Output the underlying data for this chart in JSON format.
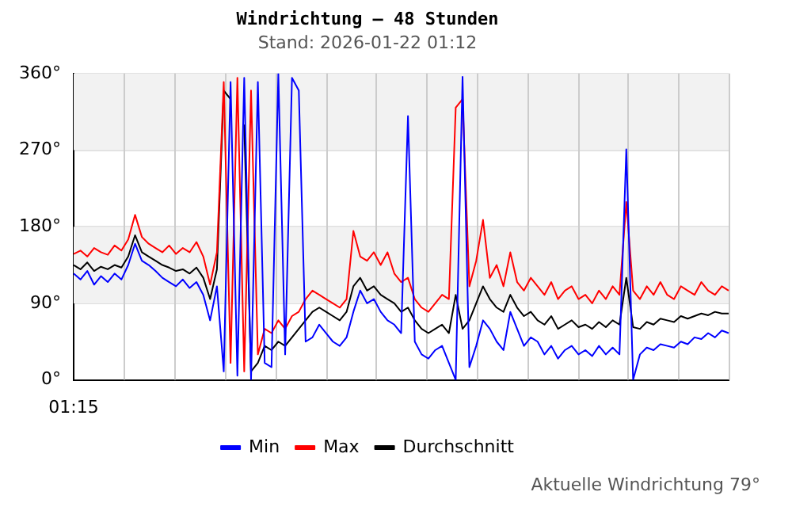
{
  "chart_data": {
    "type": "line",
    "title": "Windrichtung – 48 Stunden",
    "subtitle": "Stand: 2026-01-22 01:12",
    "categories": [
      "01:15",
      null,
      null,
      null,
      null,
      null,
      null,
      null,
      null,
      null,
      null,
      null,
      null,
      null,
      null,
      null,
      null,
      null,
      null,
      null,
      null,
      null,
      null,
      null,
      null,
      null,
      null,
      null,
      null,
      null,
      null,
      null,
      null,
      null,
      null,
      null,
      null,
      null,
      null,
      null,
      null,
      null,
      null,
      null,
      null,
      null,
      null,
      null,
      null,
      null,
      null,
      null,
      null,
      null,
      null,
      null,
      null,
      null,
      null,
      null,
      null,
      null,
      null,
      null,
      null,
      null,
      null,
      null,
      null,
      null,
      null,
      null,
      null,
      null,
      null,
      null,
      null,
      null,
      null,
      null,
      null,
      null,
      null,
      null,
      null,
      null,
      null,
      null,
      null,
      null,
      null,
      null,
      null,
      null,
      null,
      null,
      null
    ],
    "series": [
      {
        "name": "Min",
        "color": "#0000ff",
        "values": [
          125,
          118,
          128,
          112,
          122,
          115,
          125,
          118,
          135,
          160,
          140,
          135,
          128,
          120,
          115,
          110,
          118,
          108,
          115,
          100,
          70,
          110,
          10,
          350,
          5,
          355,
          0,
          350,
          20,
          15,
          360,
          30,
          355,
          340,
          45,
          50,
          65,
          55,
          45,
          40,
          50,
          80,
          105,
          90,
          95,
          80,
          70,
          65,
          55,
          310,
          45,
          30,
          25,
          35,
          40,
          20,
          0,
          356,
          15,
          40,
          70,
          60,
          45,
          35,
          80,
          60,
          40,
          50,
          45,
          30,
          40,
          25,
          35,
          40,
          30,
          35,
          28,
          40,
          30,
          38,
          30,
          271,
          0,
          30,
          38,
          35,
          42,
          40,
          38,
          45,
          42,
          50,
          48,
          55,
          50,
          58,
          55
        ]
      },
      {
        "name": "Max",
        "color": "#ff0000",
        "values": [
          148,
          152,
          145,
          155,
          150,
          147,
          158,
          152,
          165,
          194,
          168,
          160,
          155,
          150,
          158,
          148,
          155,
          150,
          162,
          145,
          112,
          150,
          350,
          20,
          355,
          10,
          340,
          30,
          60,
          55,
          70,
          60,
          75,
          80,
          95,
          105,
          100,
          95,
          90,
          85,
          95,
          175,
          145,
          140,
          150,
          135,
          150,
          125,
          115,
          120,
          95,
          85,
          80,
          90,
          100,
          95,
          320,
          330,
          110,
          140,
          188,
          120,
          135,
          110,
          150,
          115,
          105,
          120,
          110,
          100,
          115,
          95,
          105,
          110,
          95,
          100,
          90,
          105,
          95,
          110,
          100,
          209,
          105,
          95,
          110,
          100,
          115,
          100,
          95,
          110,
          105,
          100,
          115,
          105,
          100,
          110,
          105
        ]
      },
      {
        "name": "Durchschnitt",
        "color": "#000000",
        "values": [
          135,
          130,
          138,
          128,
          133,
          130,
          135,
          132,
          145,
          170,
          150,
          145,
          140,
          135,
          132,
          128,
          130,
          125,
          132,
          120,
          95,
          130,
          340,
          330,
          null,
          300,
          10,
          20,
          40,
          35,
          45,
          40,
          50,
          60,
          70,
          80,
          85,
          80,
          75,
          70,
          80,
          110,
          120,
          105,
          110,
          100,
          95,
          90,
          80,
          85,
          70,
          60,
          55,
          60,
          65,
          55,
          100,
          60,
          70,
          90,
          110,
          95,
          85,
          80,
          100,
          85,
          75,
          80,
          70,
          65,
          75,
          60,
          65,
          70,
          62,
          65,
          60,
          68,
          62,
          70,
          65,
          120,
          62,
          60,
          68,
          65,
          72,
          70,
          68,
          75,
          72,
          75,
          78,
          76,
          80,
          78,
          78
        ]
      }
    ],
    "ylim": [
      0,
      360
    ],
    "yticks": [
      {
        "value": 0,
        "label": "0°"
      },
      {
        "value": 90,
        "label": "90°"
      },
      {
        "value": 180,
        "label": "180°"
      },
      {
        "value": 270,
        "label": "270°"
      },
      {
        "value": 360,
        "label": "360°"
      }
    ],
    "bands": [
      {
        "axis": "y",
        "from": 90,
        "to": 180,
        "color": "#f2f2f2"
      },
      {
        "axis": "y",
        "from": 270,
        "to": 360,
        "color": "#f2f2f2"
      }
    ],
    "grid": true,
    "legend": "bottom",
    "marker": "none",
    "line_style": "solid",
    "annotations": [
      "Aktuelle Windrichtung 79°"
    ]
  }
}
